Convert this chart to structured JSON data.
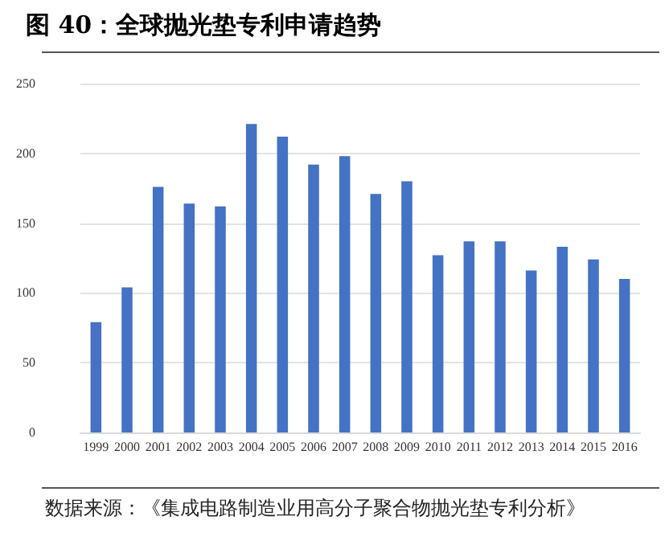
{
  "chart_data": {
    "type": "bar",
    "title": "图 40：全球抛光垫专利申请趋势",
    "categories": [
      "1999",
      "2000",
      "2001",
      "2002",
      "2003",
      "2004",
      "2005",
      "2006",
      "2007",
      "2008",
      "2009",
      "2010",
      "2011",
      "2012",
      "2013",
      "2014",
      "2015",
      "2016"
    ],
    "values": [
      79,
      104,
      176,
      164,
      162,
      221,
      212,
      192,
      198,
      171,
      180,
      127,
      137,
      137,
      116,
      133,
      124,
      110
    ],
    "color": "#4472c4",
    "ylim": [
      0,
      250
    ],
    "yticks": [
      0,
      50,
      100,
      150,
      200,
      250
    ],
    "grid": "y",
    "annotations": [
      "数据来源：《集成电路制造业用高分子聚合物抛光垫专利分析》"
    ]
  }
}
